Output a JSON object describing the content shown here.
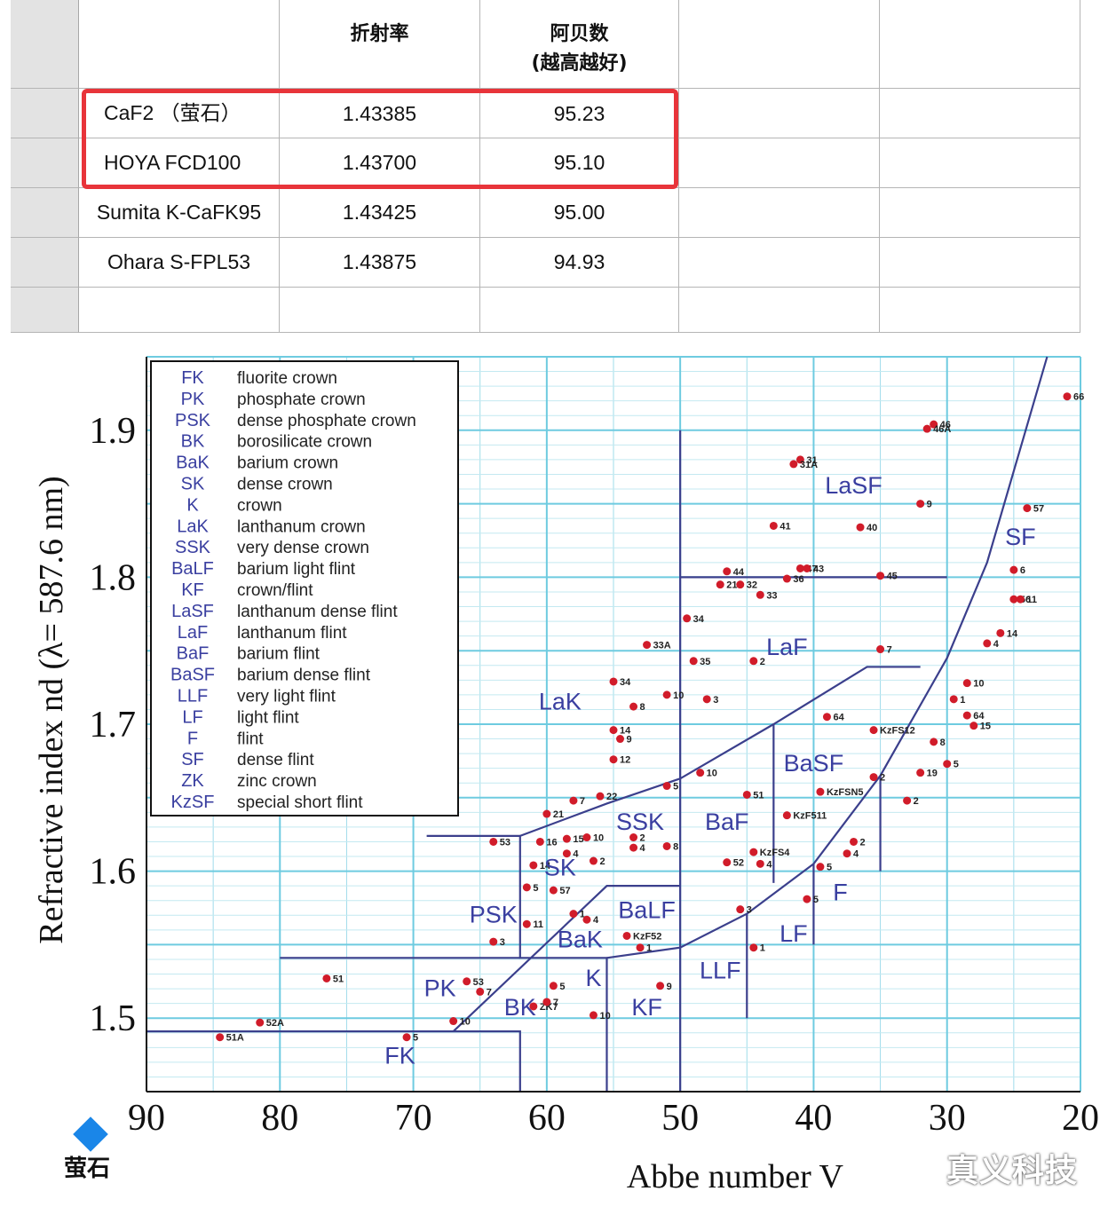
{
  "table": {
    "headers": [
      "",
      "折射率",
      "阿贝数",
      "(越高越好)"
    ],
    "rows": [
      {
        "material": "CaF2 （萤石）",
        "refractive_index": "1.43385",
        "abbe_number": "95.23"
      },
      {
        "material": "HOYA FCD100",
        "refractive_index": "1.43700",
        "abbe_number": "95.10"
      },
      {
        "material": "Sumita K-CaFK95",
        "refractive_index": "1.43425",
        "abbe_number": "95.00"
      },
      {
        "material": "Ohara S-FPL53",
        "refractive_index": "1.43875",
        "abbe_number": "94.93"
      }
    ],
    "highlight_color": "#e8343a"
  },
  "chart_data": {
    "type": "scatter",
    "title": "",
    "xlabel": "Abbe number V",
    "ylabel": "Refractive index nd (λ= 587.6 nm)",
    "xlim": [
      90,
      20
    ],
    "ylim": [
      1.45,
      1.95
    ],
    "x_ticks": [
      "90",
      "80",
      "70",
      "60",
      "50",
      "40",
      "30",
      "20"
    ],
    "y_ticks": [
      "1.5",
      "1.6",
      "1.7",
      "1.8",
      "1.9"
    ],
    "grid": true,
    "legend_position": "top-left",
    "legend": [
      {
        "abbr": "FK",
        "desc": "fluorite crown"
      },
      {
        "abbr": "PK",
        "desc": "phosphate crown"
      },
      {
        "abbr": "PSK",
        "desc": "dense phosphate crown"
      },
      {
        "abbr": "BK",
        "desc": "borosilicate crown"
      },
      {
        "abbr": "BaK",
        "desc": "barium crown"
      },
      {
        "abbr": "SK",
        "desc": "dense crown"
      },
      {
        "abbr": "K",
        "desc": "crown"
      },
      {
        "abbr": "LaK",
        "desc": "lanthanum crown"
      },
      {
        "abbr": "SSK",
        "desc": "very dense crown"
      },
      {
        "abbr": "BaLF",
        "desc": "barium light flint"
      },
      {
        "abbr": "KF",
        "desc": "crown/flint"
      },
      {
        "abbr": "LaSF",
        "desc": "lanthanum dense flint"
      },
      {
        "abbr": "LaF",
        "desc": "lanthanum flint"
      },
      {
        "abbr": "BaF",
        "desc": "barium flint"
      },
      {
        "abbr": "BaSF",
        "desc": "barium dense flint"
      },
      {
        "abbr": "LLF",
        "desc": "very light flint"
      },
      {
        "abbr": "LF",
        "desc": "light flint"
      },
      {
        "abbr": "F",
        "desc": "flint"
      },
      {
        "abbr": "SF",
        "desc": "dense flint"
      },
      {
        "abbr": "ZK",
        "desc": "zinc crown"
      },
      {
        "abbr": "KzSF",
        "desc": "special short flint"
      }
    ],
    "regions": [
      {
        "name": "FK",
        "v": 71,
        "n": 1.469
      },
      {
        "name": "PK",
        "v": 68,
        "n": 1.515
      },
      {
        "name": "PSK",
        "v": 64,
        "n": 1.565
      },
      {
        "name": "BK",
        "v": 62,
        "n": 1.502
      },
      {
        "name": "BaK",
        "v": 57.5,
        "n": 1.548
      },
      {
        "name": "SK",
        "v": 59,
        "n": 1.597
      },
      {
        "name": "K",
        "v": 56.5,
        "n": 1.522
      },
      {
        "name": "LaK",
        "v": 59,
        "n": 1.71
      },
      {
        "name": "SSK",
        "v": 53,
        "n": 1.628
      },
      {
        "name": "BaLF",
        "v": 52.5,
        "n": 1.568
      },
      {
        "name": "KF",
        "v": 52.5,
        "n": 1.502
      },
      {
        "name": "LLF",
        "v": 47,
        "n": 1.527
      },
      {
        "name": "LF",
        "v": 41.5,
        "n": 1.552
      },
      {
        "name": "F",
        "v": 38,
        "n": 1.58
      },
      {
        "name": "BaF",
        "v": 46.5,
        "n": 1.628
      },
      {
        "name": "BaSF",
        "v": 40,
        "n": 1.668
      },
      {
        "name": "LaF",
        "v": 42,
        "n": 1.747
      },
      {
        "name": "LaSF",
        "v": 37,
        "n": 1.857
      },
      {
        "name": "SF",
        "v": 24.5,
        "n": 1.822
      }
    ],
    "boundaries": [
      [
        [
          90,
          1.491
        ],
        [
          62,
          1.491
        ],
        [
          62,
          1.45
        ]
      ],
      [
        [
          80,
          1.541
        ],
        [
          62,
          1.541
        ]
      ],
      [
        [
          67,
          1.491
        ],
        [
          55.5,
          1.59
        ],
        [
          50,
          1.59
        ]
      ],
      [
        [
          69,
          1.624
        ],
        [
          62,
          1.624
        ],
        [
          62,
          1.541
        ],
        [
          55.5,
          1.541
        ],
        [
          55.5,
          1.45
        ]
      ],
      [
        [
          50,
          1.9
        ],
        [
          50,
          1.45
        ]
      ],
      [
        [
          62,
          1.624
        ],
        [
          55.5,
          1.646
        ],
        [
          50,
          1.663
        ],
        [
          43,
          1.7
        ],
        [
          36,
          1.739
        ],
        [
          32,
          1.739
        ]
      ],
      [
        [
          50,
          1.8
        ],
        [
          30,
          1.8
        ]
      ],
      [
        [
          55.5,
          1.541
        ],
        [
          50,
          1.548
        ],
        [
          45,
          1.571
        ],
        [
          40,
          1.605
        ],
        [
          35,
          1.665
        ],
        [
          30,
          1.745
        ],
        [
          27,
          1.81
        ],
        [
          22.5,
          1.95
        ]
      ],
      [
        [
          43,
          1.7
        ],
        [
          43,
          1.592
        ]
      ],
      [
        [
          40,
          1.605
        ],
        [
          40,
          1.55
        ]
      ],
      [
        [
          45,
          1.571
        ],
        [
          45,
          1.5
        ]
      ],
      [
        [
          35,
          1.665
        ],
        [
          35,
          1.6
        ]
      ]
    ],
    "points": [
      {
        "label": "51A",
        "v": 84.5,
        "n": 1.487
      },
      {
        "label": "52A",
        "v": 81.5,
        "n": 1.497
      },
      {
        "label": "51",
        "v": 76.5,
        "n": 1.527
      },
      {
        "label": "5",
        "v": 70.5,
        "n": 1.487
      },
      {
        "label": "10",
        "v": 67,
        "n": 1.498
      },
      {
        "label": "53",
        "v": 66,
        "n": 1.525
      },
      {
        "label": "7",
        "v": 65,
        "n": 1.518
      },
      {
        "label": "53",
        "v": 64,
        "n": 1.62
      },
      {
        "label": "3",
        "v": 64,
        "n": 1.552
      },
      {
        "label": "ZK7",
        "v": 61,
        "n": 1.508
      },
      {
        "label": "7",
        "v": 60,
        "n": 1.511
      },
      {
        "label": "5",
        "v": 59.5,
        "n": 1.522
      },
      {
        "label": "1",
        "v": 58,
        "n": 1.571
      },
      {
        "label": "4",
        "v": 57,
        "n": 1.567
      },
      {
        "label": "10",
        "v": 56.5,
        "n": 1.502
      },
      {
        "label": "11",
        "v": 61.5,
        "n": 1.564
      },
      {
        "label": "5",
        "v": 61.5,
        "n": 1.589
      },
      {
        "label": "57",
        "v": 59.5,
        "n": 1.587
      },
      {
        "label": "14",
        "v": 61,
        "n": 1.604
      },
      {
        "label": "4",
        "v": 58.5,
        "n": 1.612
      },
      {
        "label": "2",
        "v": 56.5,
        "n": 1.607
      },
      {
        "label": "16",
        "v": 60.5,
        "n": 1.62
      },
      {
        "label": "15",
        "v": 58.5,
        "n": 1.622
      },
      {
        "label": "10",
        "v": 57,
        "n": 1.623
      },
      {
        "label": "21",
        "v": 60,
        "n": 1.639
      },
      {
        "label": "7",
        "v": 58,
        "n": 1.648
      },
      {
        "label": "22",
        "v": 56,
        "n": 1.651
      },
      {
        "label": "4",
        "v": 53.5,
        "n": 1.616
      },
      {
        "label": "2",
        "v": 53.5,
        "n": 1.623
      },
      {
        "label": "8",
        "v": 51,
        "n": 1.617
      },
      {
        "label": "5",
        "v": 51,
        "n": 1.658
      },
      {
        "label": "1",
        "v": 53,
        "n": 1.548
      },
      {
        "label": "KzF52",
        "v": 54,
        "n": 1.556
      },
      {
        "label": "9",
        "v": 51.5,
        "n": 1.522
      },
      {
        "label": "12",
        "v": 55,
        "n": 1.676
      },
      {
        "label": "9",
        "v": 54.5,
        "n": 1.69
      },
      {
        "label": "14",
        "v": 55,
        "n": 1.696
      },
      {
        "label": "8",
        "v": 53.5,
        "n": 1.712
      },
      {
        "label": "34",
        "v": 55,
        "n": 1.729
      },
      {
        "label": "10",
        "v": 51,
        "n": 1.72
      },
      {
        "label": "33A",
        "v": 52.5,
        "n": 1.754
      },
      {
        "label": "34",
        "v": 49.5,
        "n": 1.772
      },
      {
        "label": "35",
        "v": 49,
        "n": 1.743
      },
      {
        "label": "3",
        "v": 48,
        "n": 1.717
      },
      {
        "label": "21",
        "v": 47,
        "n": 1.795
      },
      {
        "label": "44",
        "v": 46.5,
        "n": 1.804
      },
      {
        "label": "32",
        "v": 45.5,
        "n": 1.795
      },
      {
        "label": "2",
        "v": 44.5,
        "n": 1.743
      },
      {
        "label": "33",
        "v": 44,
        "n": 1.788
      },
      {
        "label": "41",
        "v": 43,
        "n": 1.835
      },
      {
        "label": "47",
        "v": 41,
        "n": 1.806
      },
      {
        "label": "43",
        "v": 40.5,
        "n": 1.806
      },
      {
        "label": "36",
        "v": 42,
        "n": 1.799
      },
      {
        "label": "31",
        "v": 41,
        "n": 1.88
      },
      {
        "label": "31A",
        "v": 41.5,
        "n": 1.877
      },
      {
        "label": "40",
        "v": 36.5,
        "n": 1.834
      },
      {
        "label": "45",
        "v": 35,
        "n": 1.801
      },
      {
        "label": "9",
        "v": 32,
        "n": 1.85
      },
      {
        "label": "46",
        "v": 31,
        "n": 1.904
      },
      {
        "label": "46A",
        "v": 31.5,
        "n": 1.901
      },
      {
        "label": "7",
        "v": 35,
        "n": 1.751
      },
      {
        "label": "10",
        "v": 48.5,
        "n": 1.667
      },
      {
        "label": "51",
        "v": 45,
        "n": 1.652
      },
      {
        "label": "KzFS4",
        "v": 44.5,
        "n": 1.613
      },
      {
        "label": "52",
        "v": 46.5,
        "n": 1.606
      },
      {
        "label": "4",
        "v": 44,
        "n": 1.605
      },
      {
        "label": "3",
        "v": 45.5,
        "n": 1.574
      },
      {
        "label": "1",
        "v": 44.5,
        "n": 1.548
      },
      {
        "label": "KzF511",
        "v": 42,
        "n": 1.638
      },
      {
        "label": "KzFSN5",
        "v": 39.5,
        "n": 1.654
      },
      {
        "label": "64",
        "v": 39,
        "n": 1.705
      },
      {
        "label": "KzFS12",
        "v": 35.5,
        "n": 1.696
      },
      {
        "label": "2",
        "v": 35.5,
        "n": 1.664
      },
      {
        "label": "5",
        "v": 39.5,
        "n": 1.603
      },
      {
        "label": "4",
        "v": 37.5,
        "n": 1.612
      },
      {
        "label": "2",
        "v": 37,
        "n": 1.62
      },
      {
        "label": "5",
        "v": 40.5,
        "n": 1.581
      },
      {
        "label": "19",
        "v": 32,
        "n": 1.667
      },
      {
        "label": "2",
        "v": 33,
        "n": 1.648
      },
      {
        "label": "8",
        "v": 31,
        "n": 1.688
      },
      {
        "label": "5",
        "v": 30,
        "n": 1.673
      },
      {
        "label": "15",
        "v": 28,
        "n": 1.699
      },
      {
        "label": "64",
        "v": 28.5,
        "n": 1.706
      },
      {
        "label": "1",
        "v": 29.5,
        "n": 1.717
      },
      {
        "label": "10",
        "v": 28.5,
        "n": 1.728
      },
      {
        "label": "4",
        "v": 27,
        "n": 1.755
      },
      {
        "label": "14",
        "v": 26,
        "n": 1.762
      },
      {
        "label": "56",
        "v": 25,
        "n": 1.785
      },
      {
        "label": "11",
        "v": 24.5,
        "n": 1.785
      },
      {
        "label": "6",
        "v": 25,
        "n": 1.805
      },
      {
        "label": "57",
        "v": 24,
        "n": 1.847
      },
      {
        "label": "66",
        "v": 21,
        "n": 1.923
      }
    ]
  },
  "marker": {
    "label": "萤石",
    "color": "#1a86e8"
  },
  "watermark": "真义科技"
}
